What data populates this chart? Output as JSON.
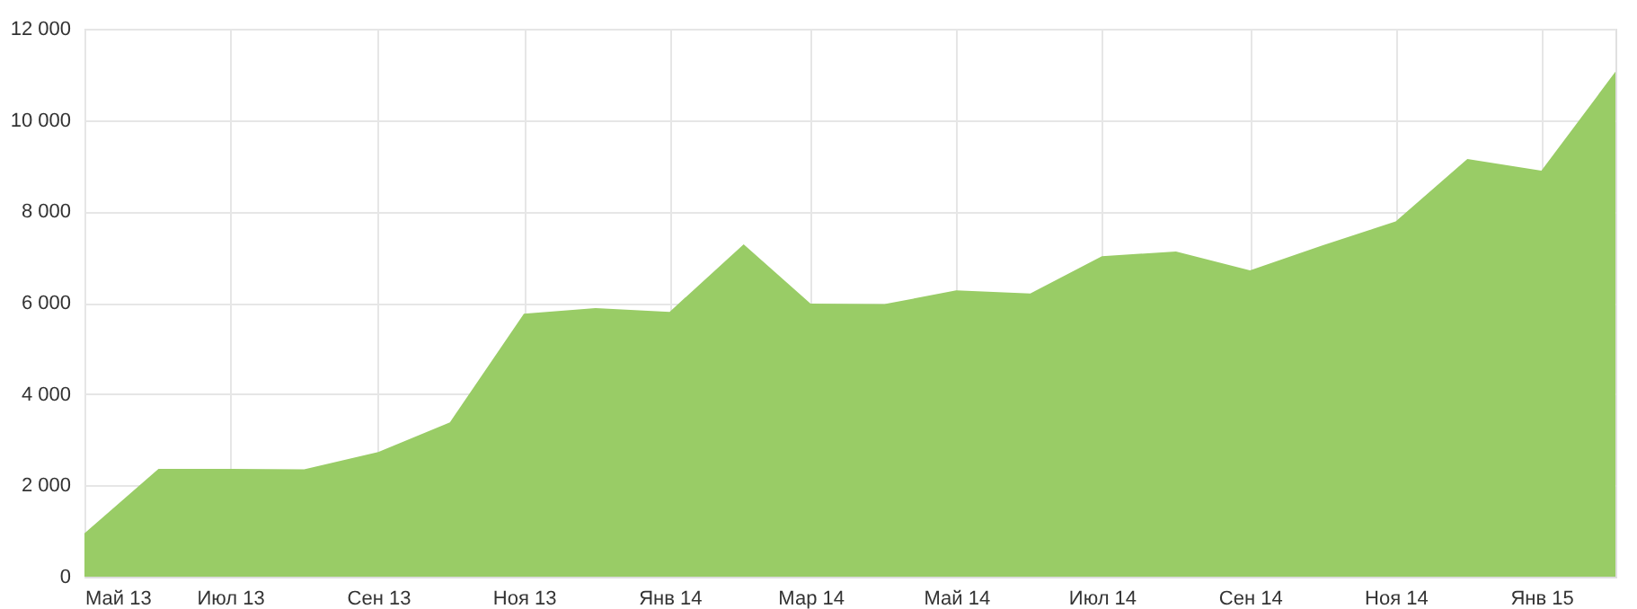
{
  "chart_data": {
    "type": "area",
    "x": [
      "2013-05",
      "2013-06",
      "2013-07",
      "2013-08",
      "2013-09",
      "2013-10",
      "2013-11",
      "2013-12",
      "2014-01",
      "2014-02",
      "2014-03",
      "2014-04",
      "2014-05",
      "2014-06",
      "2014-07",
      "2014-08",
      "2014-09",
      "2014-10",
      "2014-11",
      "2014-12",
      "2015-01",
      "2015-02"
    ],
    "series": [
      {
        "color": "#99cc66",
        "values": [
          950,
          2360,
          2360,
          2350,
          2730,
          3380,
          5760,
          5880,
          5800,
          7280,
          5980,
          5970,
          6270,
          6200,
          7020,
          7120,
          6710,
          7250,
          7780,
          9150,
          8890,
          11060
        ]
      }
    ],
    "xlim": [
      "2013-05",
      "2015-02"
    ],
    "xticks": [
      {
        "value": "2013-05",
        "label": "Май 13"
      },
      {
        "value": "2013-07",
        "label": "Июл 13"
      },
      {
        "value": "2013-09",
        "label": "Сен 13"
      },
      {
        "value": "2013-11",
        "label": "Ноя 13"
      },
      {
        "value": "2014-01",
        "label": "Янв 14"
      },
      {
        "value": "2014-03",
        "label": "Мар 14"
      },
      {
        "value": "2014-05",
        "label": "Май 14"
      },
      {
        "value": "2014-07",
        "label": "Июл 14"
      },
      {
        "value": "2014-09",
        "label": "Сен 14"
      },
      {
        "value": "2014-11",
        "label": "Ноя 14"
      },
      {
        "value": "2015-01",
        "label": "Янв 15"
      }
    ],
    "ylim": [
      0,
      12000
    ],
    "yticks": [
      0,
      {
        "value": 2000,
        "label": "2 000"
      },
      {
        "value": 4000,
        "label": "4 000"
      },
      {
        "value": 6000,
        "label": "6 000"
      },
      {
        "value": 8000,
        "label": "8 000"
      },
      {
        "value": 10000,
        "label": "10 000"
      },
      {
        "value": 12000,
        "label": "12 000"
      }
    ],
    "grid": true
  }
}
